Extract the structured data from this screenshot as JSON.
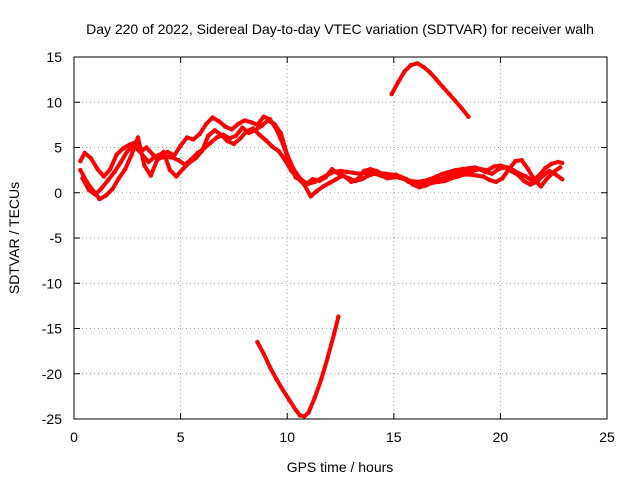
{
  "chart_data": {
    "type": "line",
    "title": "Day 220 of 2022, Sidereal Day-to-day VTEC variation (SDTVAR) for receiver walh",
    "xlabel": "GPS time / hours",
    "ylabel": "SDTVAR / TECUs",
    "xlim": [
      0,
      25
    ],
    "ylim": [
      -25,
      15
    ],
    "xticks": [
      0,
      5,
      10,
      15,
      20,
      25
    ],
    "yticks": [
      -25,
      -20,
      -15,
      -10,
      -5,
      0,
      5,
      10,
      15
    ],
    "grid": true,
    "legend": "none",
    "color": "#ff0000",
    "series": [
      {
        "name": "arc-1",
        "x": [
          0.3,
          0.5,
          0.8,
          1.1,
          1.4,
          1.7,
          2.0,
          2.3,
          2.6,
          2.9,
          3.2,
          3.5,
          3.8,
          4.1,
          4.4,
          4.7,
          5.0,
          5.3,
          5.6,
          5.9,
          6.2,
          6.5,
          6.8,
          7.1,
          7.4,
          7.7,
          8.0,
          8.3,
          8.6,
          8.9,
          9.2,
          9.5,
          9.8,
          10.1,
          10.4,
          10.7,
          11.0,
          11.3,
          11.6,
          11.9,
          12.2,
          12.5,
          12.8,
          13.1,
          13.4,
          13.7,
          14.0,
          14.3,
          14.6,
          14.9,
          15.2,
          15.5,
          15.8,
          16.1,
          16.4,
          16.7,
          17.0,
          17.3,
          17.6,
          17.9,
          18.2,
          18.5,
          18.8,
          19.1,
          19.4,
          19.7,
          20.0,
          20.3,
          20.6,
          20.9,
          21.2,
          21.5,
          21.8,
          22.1,
          22.4,
          22.7,
          22.9
        ],
        "y": [
          3.5,
          4.4,
          3.8,
          2.6,
          1.8,
          2.6,
          4.2,
          4.9,
          5.3,
          5.6,
          4.2,
          3.4,
          4.0,
          4.3,
          4.5,
          4.1,
          5.2,
          6.1,
          5.9,
          6.5,
          7.6,
          8.3,
          7.9,
          7.3,
          7.0,
          7.6,
          8.0,
          7.8,
          7.5,
          8.4,
          8.1,
          7.0,
          5.4,
          3.3,
          1.7,
          1.3,
          1.0,
          1.2,
          1.6,
          2.0,
          2.3,
          2.4,
          2.3,
          2.2,
          2.1,
          2.2,
          2.4,
          2.2,
          2.1,
          2.0,
          1.7,
          1.5,
          1.3,
          1.2,
          1.3,
          1.5,
          1.8,
          2.1,
          2.3,
          2.5,
          2.6,
          2.7,
          2.8,
          2.6,
          2.5,
          2.9,
          3.0,
          2.8,
          2.5,
          2.1,
          1.8,
          1.3,
          1.9,
          2.7,
          3.2,
          3.4,
          3.3
        ]
      },
      {
        "name": "arc-2",
        "x": [
          0.3,
          0.6,
          0.9,
          1.2,
          1.5,
          1.8,
          2.1,
          2.4,
          2.7,
          3.0,
          3.3,
          3.6,
          3.9,
          4.2,
          4.5,
          4.8,
          5.1,
          5.4,
          5.7,
          6.0,
          6.3,
          6.6,
          6.9,
          7.2,
          7.5,
          7.8,
          8.1,
          8.4,
          8.7,
          9.0,
          9.3,
          9.6,
          9.9,
          10.2,
          10.5,
          10.8,
          11.1,
          11.4,
          11.7,
          12.0,
          12.3,
          12.6,
          12.9,
          13.2,
          13.5,
          13.8,
          14.1,
          14.4,
          14.7,
          15.0,
          15.3,
          15.6,
          15.9,
          16.2,
          16.5,
          16.8,
          17.1,
          17.4,
          17.7,
          18.0,
          18.3,
          18.6,
          18.9,
          19.2,
          19.5,
          19.8,
          20.1,
          20.4,
          20.7,
          21.0,
          21.3,
          21.6,
          21.9,
          22.2,
          22.5,
          22.8
        ],
        "y": [
          2.5,
          1.2,
          0.2,
          -0.7,
          -0.3,
          0.4,
          1.6,
          2.6,
          4.2,
          6.1,
          3.0,
          1.9,
          3.6,
          4.5,
          2.5,
          1.8,
          2.6,
          3.3,
          3.8,
          4.6,
          6.3,
          6.9,
          6.4,
          5.7,
          5.4,
          6.0,
          6.8,
          7.1,
          6.4,
          5.8,
          5.1,
          4.6,
          3.6,
          2.4,
          1.6,
          0.9,
          -0.4,
          0.2,
          0.7,
          1.1,
          1.5,
          1.9,
          1.6,
          1.3,
          1.5,
          1.9,
          2.1,
          1.9,
          1.6,
          1.7,
          1.8,
          1.5,
          0.9,
          0.6,
          0.8,
          1.1,
          1.2,
          1.3,
          1.6,
          1.8,
          2.0,
          2.0,
          1.9,
          1.8,
          1.4,
          1.2,
          1.6,
          2.6,
          3.5,
          3.6,
          2.6,
          1.4,
          0.7,
          1.6,
          2.3,
          2.8
        ]
      },
      {
        "name": "arc-3",
        "x": [
          0.4,
          0.7,
          1.0,
          1.3,
          1.6,
          1.9,
          2.2,
          2.5,
          2.8,
          3.1,
          3.4,
          3.7,
          4.0,
          4.3,
          4.6,
          4.9,
          5.2,
          5.5,
          5.8,
          6.1,
          6.4,
          6.7,
          7.0,
          7.3,
          7.6,
          7.9,
          8.2,
          8.5,
          8.8,
          9.1,
          9.4,
          9.7,
          10.0,
          10.3,
          10.6,
          10.9,
          11.2,
          11.5,
          11.8,
          12.1,
          12.4,
          12.7,
          13.0,
          13.3,
          13.6,
          13.9,
          14.2,
          14.5,
          14.8,
          15.1,
          15.4,
          15.7,
          16.0,
          16.3,
          16.6,
          16.9,
          17.2,
          17.5,
          17.8,
          18.1,
          18.4,
          18.7,
          19.0,
          19.3,
          19.6,
          19.9,
          20.2,
          20.5,
          20.8,
          21.1,
          21.4,
          21.7,
          22.0,
          22.3,
          22.6,
          22.9
        ],
        "y": [
          1.6,
          0.3,
          -0.2,
          0.5,
          1.4,
          2.3,
          3.4,
          4.6,
          5.2,
          4.5,
          5.0,
          4.2,
          3.8,
          4.0,
          3.9,
          3.6,
          3.1,
          3.7,
          4.4,
          4.9,
          5.5,
          6.1,
          6.4,
          6.0,
          6.3,
          7.2,
          6.6,
          6.9,
          7.4,
          8.0,
          7.6,
          6.6,
          4.2,
          2.6,
          1.6,
          1.0,
          1.5,
          1.3,
          1.7,
          2.6,
          2.1,
          1.8,
          1.2,
          1.5,
          2.4,
          2.6,
          2.4,
          2.0,
          1.8,
          2.0,
          1.6,
          1.2,
          0.9,
          1.0,
          1.4,
          1.6,
          1.5,
          1.8,
          2.0,
          2.3,
          2.2,
          2.4,
          2.6,
          2.3,
          2.1,
          2.6,
          2.8,
          2.4,
          2.0,
          1.3,
          0.9,
          1.2,
          1.9,
          2.4,
          2.0,
          1.5
        ]
      },
      {
        "name": "arc-4",
        "x": [
          14.9,
          15.2,
          15.5,
          15.8,
          16.1,
          16.4,
          16.7,
          17.0,
          17.3,
          17.6,
          17.9,
          18.2,
          18.5
        ],
        "y": [
          10.9,
          12.2,
          13.4,
          14.1,
          14.3,
          13.9,
          13.3,
          12.5,
          11.7,
          10.9,
          10.1,
          9.3,
          8.4
        ]
      },
      {
        "name": "arc-5",
        "x": [
          8.6,
          8.9,
          9.2,
          9.5,
          9.8,
          10.1,
          10.4,
          10.6,
          10.8,
          11.0,
          11.3,
          11.6,
          11.9,
          12.2,
          12.4
        ],
        "y": [
          -16.5,
          -17.8,
          -19.3,
          -20.6,
          -21.8,
          -22.9,
          -24.0,
          -24.6,
          -24.7,
          -24.3,
          -22.6,
          -20.6,
          -18.2,
          -15.6,
          -13.7
        ]
      }
    ]
  }
}
